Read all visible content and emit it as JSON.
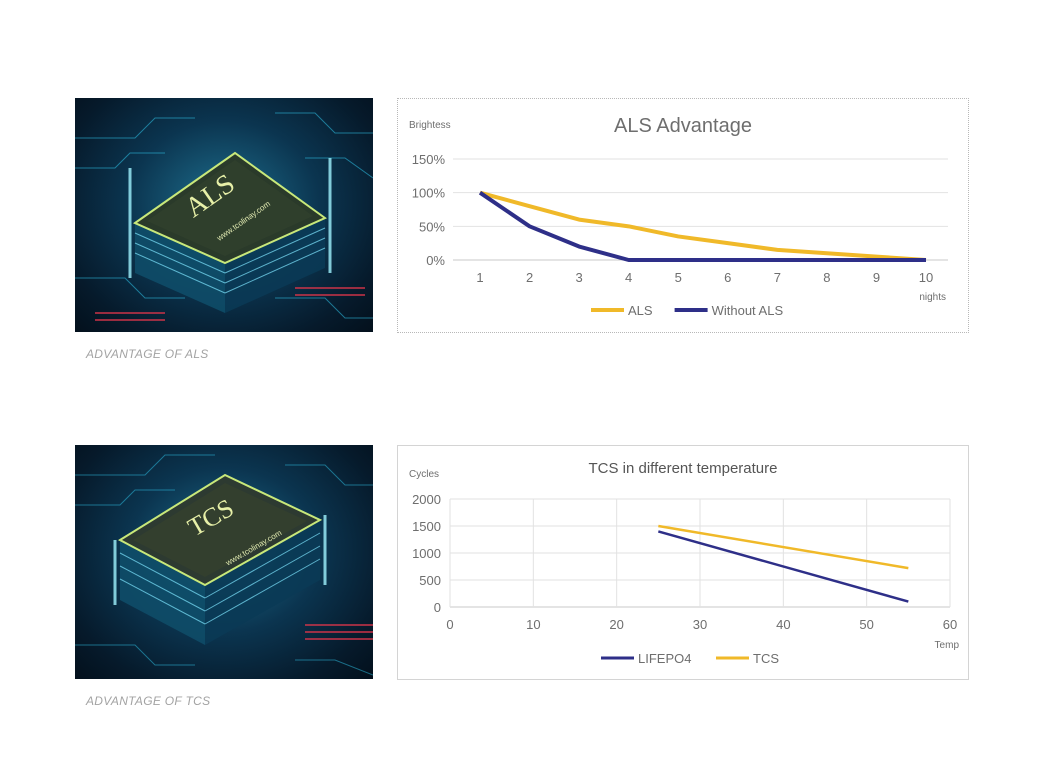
{
  "captions": {
    "als": "ADVANTAGE OF ALS",
    "tcs": "ADVANTAGE OF TCS"
  },
  "images": {
    "als_chip_label": "ALS",
    "tcs_chip_label": "TCS",
    "chip_url_text": "www.tcolinay.com"
  },
  "chart_data": [
    {
      "type": "line",
      "title": "ALS Advantage",
      "ylabel": "Brightess",
      "xlabel": "nights",
      "x": [
        1,
        2,
        3,
        4,
        5,
        6,
        7,
        8,
        9,
        10
      ],
      "y_ticks": [
        "0%",
        "50%",
        "100%",
        "150%"
      ],
      "ylim": [
        0,
        150
      ],
      "grid": "horizontal",
      "legend_position": "bottom",
      "series": [
        {
          "name": "ALS",
          "color": "#f0b929",
          "values": [
            100,
            80,
            60,
            50,
            35,
            25,
            15,
            10,
            5,
            0
          ]
        },
        {
          "name": "Without ALS",
          "color": "#2e2f88",
          "values": [
            100,
            50,
            20,
            0,
            0,
            0,
            0,
            0,
            0,
            0
          ]
        }
      ]
    },
    {
      "type": "line",
      "title": "TCS in different temperature",
      "ylabel": "Cycles",
      "xlabel": "Temp",
      "x_ticks": [
        0,
        10,
        20,
        30,
        40,
        50,
        60
      ],
      "y_ticks": [
        0,
        500,
        1000,
        1500,
        2000
      ],
      "xlim": [
        0,
        60
      ],
      "ylim": [
        0,
        2000
      ],
      "grid": "both",
      "legend_position": "bottom",
      "series": [
        {
          "name": "LIFEPO4",
          "color": "#2e2f88",
          "points": [
            [
              25,
              1400
            ],
            [
              55,
              100
            ]
          ]
        },
        {
          "name": "TCS",
          "color": "#f0b929",
          "points": [
            [
              25,
              1500
            ],
            [
              55,
              720
            ]
          ]
        }
      ]
    }
  ]
}
